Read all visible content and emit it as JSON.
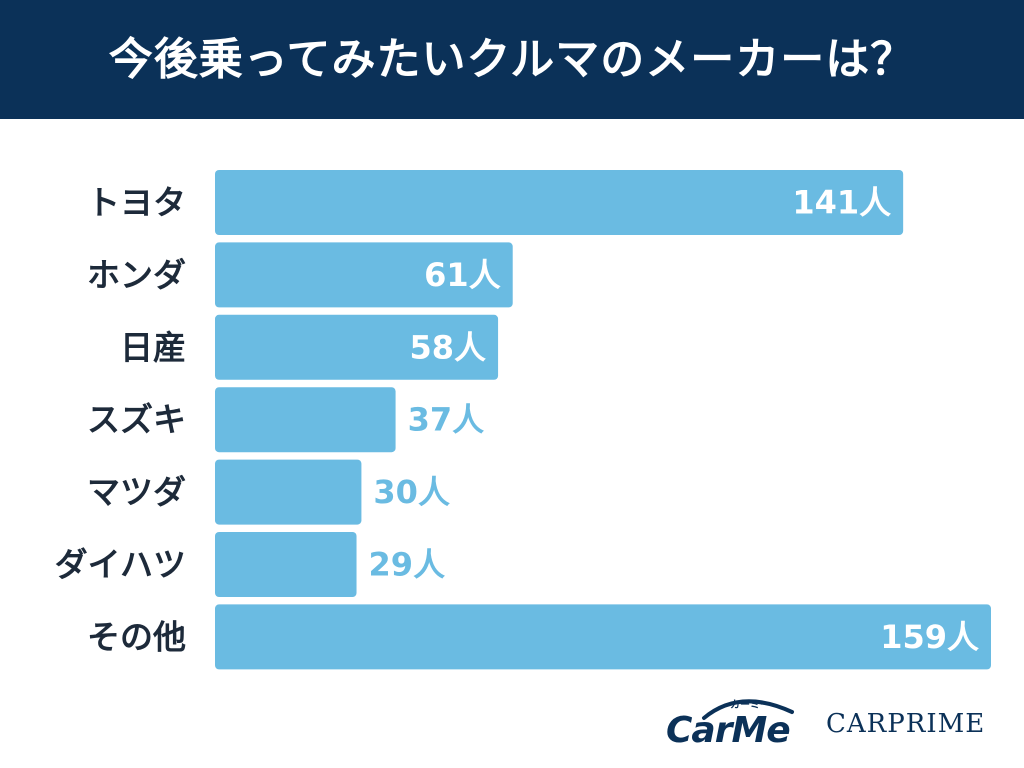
{
  "title": "今後乗ってみたいクルマのメーカーは？",
  "colors": {
    "header_bg": "#0b3158",
    "bar": "#6abbe2",
    "label_dark": "#1d2a3a",
    "value_inside": "#ffffff",
    "value_outside": "#6abbe2"
  },
  "chart_data": {
    "type": "bar",
    "orientation": "horizontal",
    "title": "今後乗ってみたいクルマのメーカーは？",
    "categories": [
      "トヨタ",
      "ホンダ",
      "日産",
      "スズキ",
      "マツダ",
      "ダイハツ",
      "その他"
    ],
    "values": [
      141,
      61,
      58,
      37,
      30,
      29,
      159
    ],
    "value_labels": [
      "141人",
      "61人",
      "58人",
      "37人",
      "30人",
      "29人",
      "159人"
    ],
    "unit": "人",
    "xlim": [
      0,
      159
    ],
    "grid": false,
    "legend": "none"
  },
  "logos": {
    "carme": "CarMe",
    "carme_sub": "カーミー",
    "carprime": "CARPRIME"
  }
}
